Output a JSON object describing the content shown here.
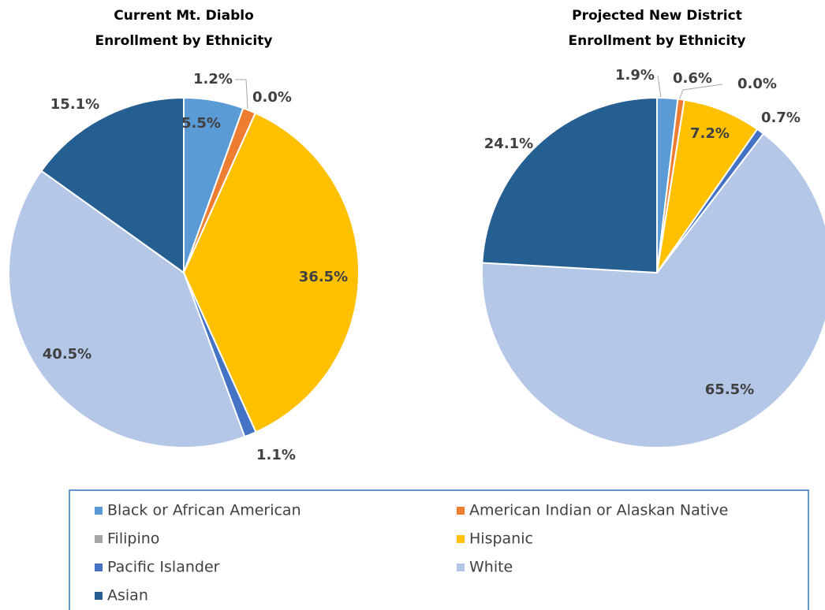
{
  "chart_data": [
    {
      "type": "pie",
      "title": [
        "Current Mt. Diablo",
        "Enrollment by Ethnicity"
      ],
      "categories": [
        "Black or African American",
        "American Indian or Alaskan Native",
        "Filipino",
        "Hispanic",
        "Pacific Islander",
        "White",
        "Asian"
      ],
      "values": [
        5.5,
        1.2,
        0.0,
        36.5,
        1.1,
        40.5,
        15.1
      ],
      "value_labels": [
        "5.5%",
        "1.2%",
        "0.0%",
        "36.5%",
        "1.1%",
        "40.5%",
        "15.1%"
      ],
      "colors": [
        "#5b9bd5",
        "#ed7d31",
        "#a5a5a5",
        "#ffc000",
        "#4472c4",
        "#b4c7e7",
        "#255e91"
      ]
    },
    {
      "type": "pie",
      "title": [
        "Projected New District",
        "Enrollment by Ethnicity"
      ],
      "categories": [
        "Black or African American",
        "American Indian or Alaskan Native",
        "Filipino",
        "Hispanic",
        "Pacific Islander",
        "White",
        "Asian"
      ],
      "values": [
        1.9,
        0.6,
        0.0,
        7.2,
        0.7,
        65.5,
        24.1
      ],
      "value_labels": [
        "1.9%",
        "0.6%",
        "0.0%",
        "7.2%",
        "0.7%",
        "65.5%",
        "24.1%"
      ],
      "colors": [
        "#5b9bd5",
        "#ed7d31",
        "#a5a5a5",
        "#ffc000",
        "#4472c4",
        "#b4c7e7",
        "#255e91"
      ]
    }
  ]
}
